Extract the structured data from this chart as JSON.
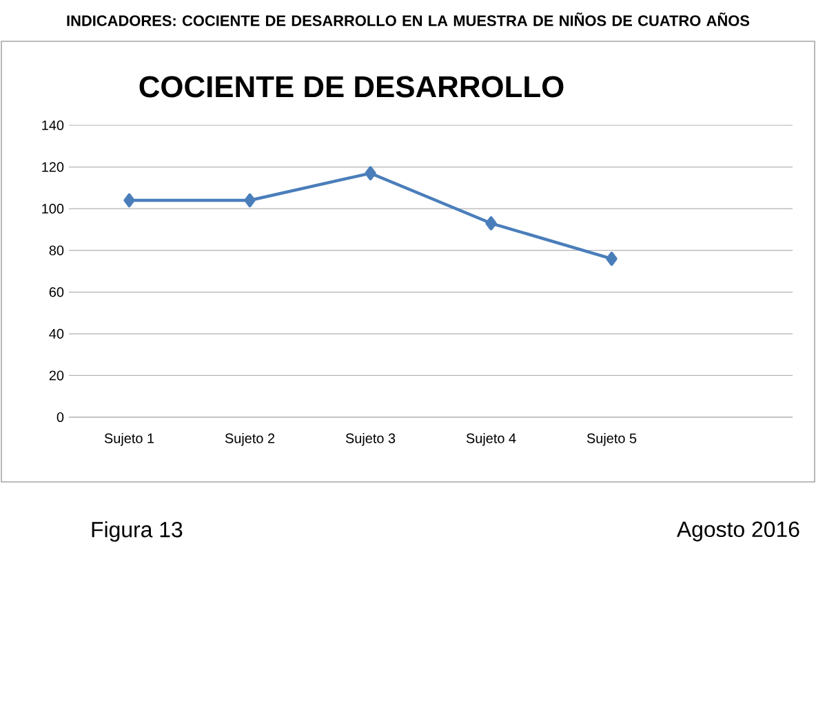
{
  "chart_data": {
    "type": "line",
    "title": "COCIENTE DE DESARROLLO",
    "categories": [
      "Sujeto 1",
      "Sujeto 2",
      "Sujeto 3",
      "Sujeto 4",
      "Sujeto 5",
      null
    ],
    "series": [
      {
        "color": "#4a7ebb",
        "values": [
          104,
          104,
          117,
          93,
          76,
          null
        ]
      }
    ],
    "ylim": [
      0,
      140
    ],
    "yticks": [
      0,
      20,
      40,
      60,
      80,
      100,
      120,
      140
    ],
    "grid": "y",
    "marker": "diamond",
    "line_style": "solid",
    "annotations": [
      "INDICADORES: COCIENTE DE DESARROLLO EN LA MUESTRA DE NIÑOS DE CUATRO AÑOS",
      "Figura 13",
      "Agosto 2016"
    ]
  }
}
